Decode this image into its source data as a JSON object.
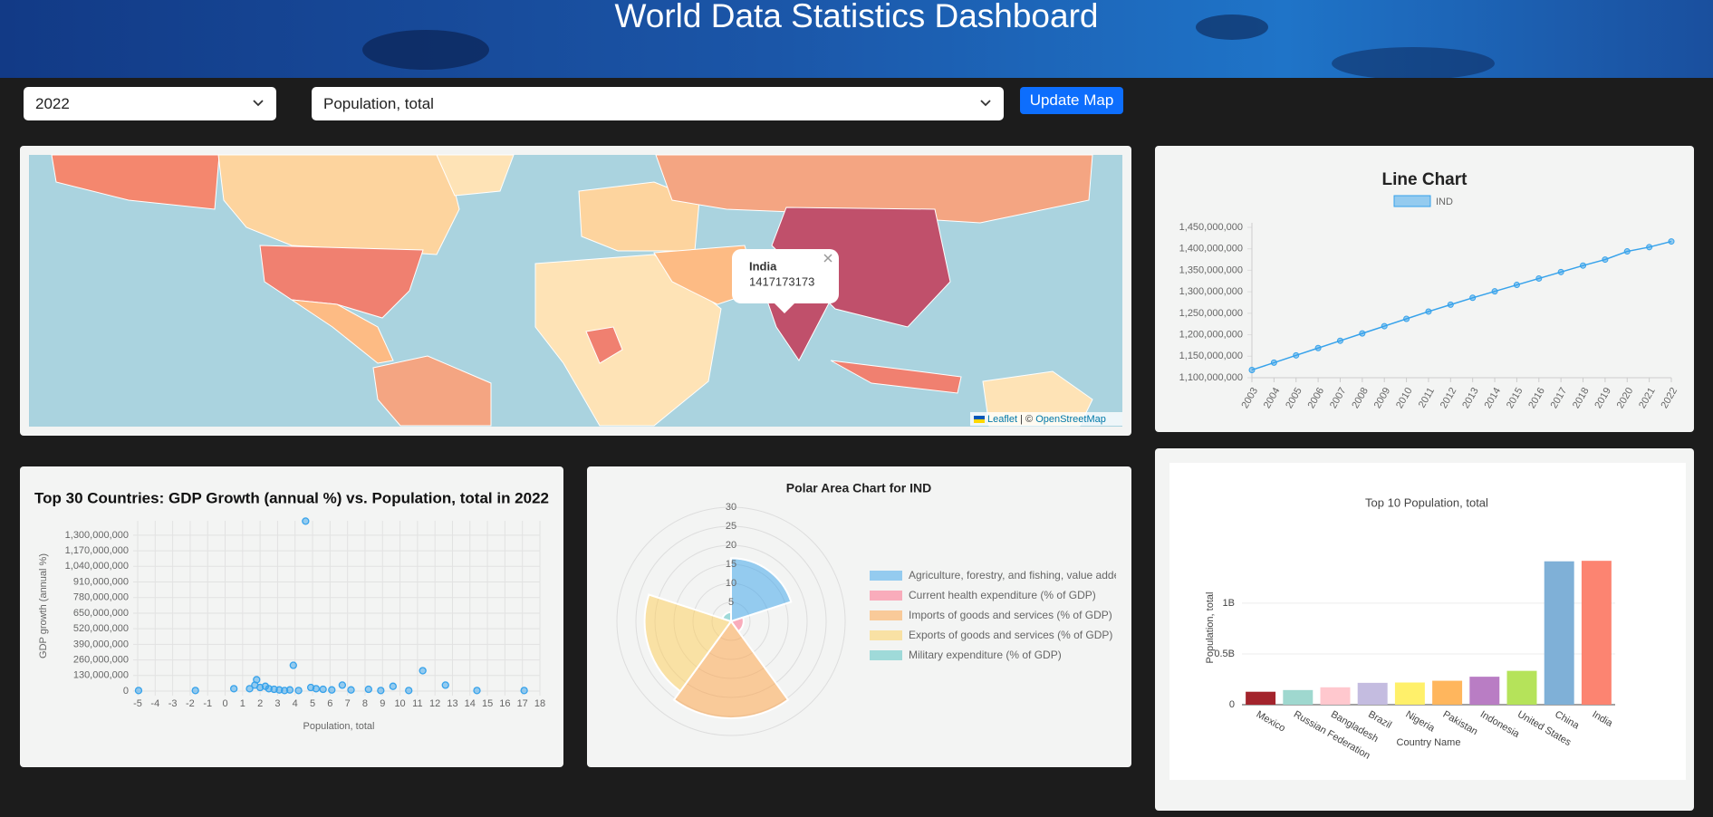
{
  "header": {
    "title": "World Data Statistics Dashboard"
  },
  "controls": {
    "year": "2022",
    "indicator": "Population, total",
    "button": "Update Map"
  },
  "map": {
    "popup": {
      "country": "India",
      "value": 1417173173
    },
    "attribution": {
      "links": [
        "Leaflet",
        "OpenStreetMap"
      ],
      "separator": "| ©"
    }
  },
  "chart_data": [
    {
      "type": "line",
      "title": "Line Chart",
      "categories": [
        "2003",
        "2004",
        "2005",
        "2006",
        "2007",
        "2008",
        "2009",
        "2010",
        "2011",
        "2012",
        "2013",
        "2014",
        "2015",
        "2016",
        "2017",
        "2018",
        "2019",
        "2020",
        "2021",
        "2022"
      ],
      "series": [
        {
          "name": "IND",
          "color": "#36a2eb",
          "values": [
            1118000000,
            1135000000,
            1152000000,
            1169000000,
            1186000000,
            1203000000,
            1220000000,
            1237000000,
            1254000000,
            1270000000,
            1286000000,
            1301000000,
            1316000000,
            1331000000,
            1346000000,
            1361000000,
            1375000000,
            1394000000,
            1404000000,
            1417173173
          ]
        }
      ],
      "ylim": [
        1100000000,
        1450000000
      ],
      "yticks": [
        {
          "value": 1100000000,
          "label": "1,100,000,000"
        },
        {
          "value": 1150000000,
          "label": "1,150,000,000"
        },
        {
          "value": 1200000000,
          "label": "1,200,000,000"
        },
        {
          "value": 1250000000,
          "label": "1,250,000,000"
        },
        {
          "value": 1300000000,
          "label": "1,300,000,000"
        },
        {
          "value": 1350000000,
          "label": "1,350,000,000"
        },
        {
          "value": 1400000000,
          "label": "1,400,000,000"
        },
        {
          "value": 1450000000,
          "label": "1,450,000,000"
        }
      ],
      "grid": false,
      "legend": "top"
    },
    {
      "type": "scatter",
      "title": "Top 30 Countries: GDP Growth (annual %) vs. Population, total in 2022",
      "x_label": "Population, total",
      "y_label": "GDP growth (annual %)",
      "color": "#36a2eb",
      "x": [
        -4.95,
        -1.7,
        0.5,
        1.4,
        1.7,
        1.8,
        2.0,
        2.3,
        2.5,
        2.8,
        3.1,
        3.4,
        3.7,
        3.9,
        4.2,
        4.6,
        4.9,
        5.2,
        5.6,
        6.1,
        6.7,
        7.2,
        8.2,
        8.9,
        9.6,
        10.5,
        11.3,
        12.6,
        14.4,
        17.1
      ],
      "values": [
        5000000,
        5000000,
        20000000,
        20000000,
        50000000,
        95000000,
        30000000,
        40000000,
        20000000,
        15000000,
        10000000,
        5000000,
        10000000,
        215000000,
        5000000,
        1417173173,
        30000000,
        20000000,
        15000000,
        10000000,
        50000000,
        10000000,
        15000000,
        5000000,
        40000000,
        5000000,
        170000000,
        50000000,
        5000000,
        5000000
      ],
      "xlim": [
        -5,
        18
      ],
      "xticks": [
        -5,
        -4,
        -3,
        -2,
        -1,
        0,
        1,
        2,
        3,
        4,
        5,
        6,
        7,
        8,
        9,
        10,
        11,
        12,
        13,
        14,
        15,
        16,
        17,
        18
      ],
      "ylim": [
        0,
        1420000000
      ],
      "yticks": [
        0,
        {
          "value": 130000000,
          "label": "130,000,000"
        },
        {
          "value": 260000000,
          "label": "260,000,000"
        },
        {
          "value": 390000000,
          "label": "390,000,000"
        },
        {
          "value": 520000000,
          "label": "520,000,000"
        },
        {
          "value": 650000000,
          "label": "650,000,000"
        },
        {
          "value": 780000000,
          "label": "780,000,000"
        },
        {
          "value": 910000000,
          "label": "910,000,000"
        },
        {
          "value": 1040000000,
          "label": "1,040,000,000"
        },
        {
          "value": 1170000000,
          "label": "1,170,000,000"
        },
        {
          "value": 1300000000,
          "label": "1,300,000,000"
        }
      ],
      "grid": true
    },
    {
      "type": "polarArea",
      "title": "Polar Area Chart for IND",
      "categories": [
        "Agriculture, forestry, and fishing, value added (% of GDP)",
        "Current health expenditure (% of GDP)",
        "Imports of goods and services (% of GDP)",
        "Exports of goods and services (% of GDP)",
        "Military expenditure (% of GDP)"
      ],
      "values": [
        16.6,
        3.3,
        25.5,
        22.7,
        2.4
      ],
      "colors": [
        "rgba(54,162,235,0.5)",
        "rgba(255,99,132,0.5)",
        "rgba(255,159,64,0.5)",
        "rgba(255,205,86,0.5)",
        "rgba(75,192,192,0.5)"
      ],
      "rlim": [
        0,
        30
      ],
      "rticks": [
        5,
        10,
        15,
        20,
        25,
        30
      ],
      "legend": "right"
    },
    {
      "type": "bar",
      "title": "Top 10 Population, total",
      "x_label": "Country Name",
      "y_label": "Population, total",
      "categories": [
        "Mexico",
        "Russian Federation",
        "Bangladesh",
        "Brazil",
        "Nigeria",
        "Pakistan",
        "Indonesia",
        "United States",
        "China",
        "India"
      ],
      "values": [
        127500000,
        144200000,
        171200000,
        215300000,
        218500000,
        235800000,
        275500000,
        333300000,
        1412200000,
        1417173173
      ],
      "colors": [
        "#a3242c",
        "#9fd8cf",
        "#ffc8ce",
        "#c4bce0",
        "#fff06a",
        "#ffb65d",
        "#b97dc4",
        "#b5e35a",
        "#7fb0d7",
        "#fc8471"
      ],
      "ylim": [
        0,
        1490000000
      ],
      "yticks": [
        0,
        {
          "value": 500000000,
          "label": "0.5B"
        },
        {
          "value": 1000000000,
          "label": "1B"
        }
      ],
      "grid": true
    }
  ]
}
